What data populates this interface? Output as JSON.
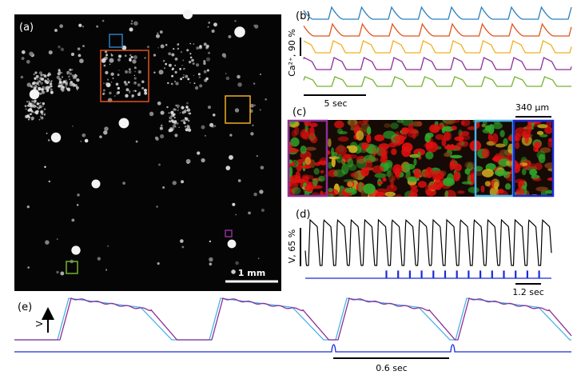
{
  "panels": {
    "a": {
      "label": "(a)",
      "scale_bar": "1 mm"
    },
    "b": {
      "label": "(b)",
      "y_label": "Ca²⁺, 90 %",
      "scale_bar": "5 sec"
    },
    "c": {
      "label": "(c)",
      "scale_bar": "340 µm"
    },
    "d": {
      "label": "(d)",
      "y_label": "V, 65 %",
      "scale_bar": "1.2 sec"
    },
    "e": {
      "label": "(e)",
      "y_label": "V",
      "scale_bar": "0.6 sec"
    }
  }
}
